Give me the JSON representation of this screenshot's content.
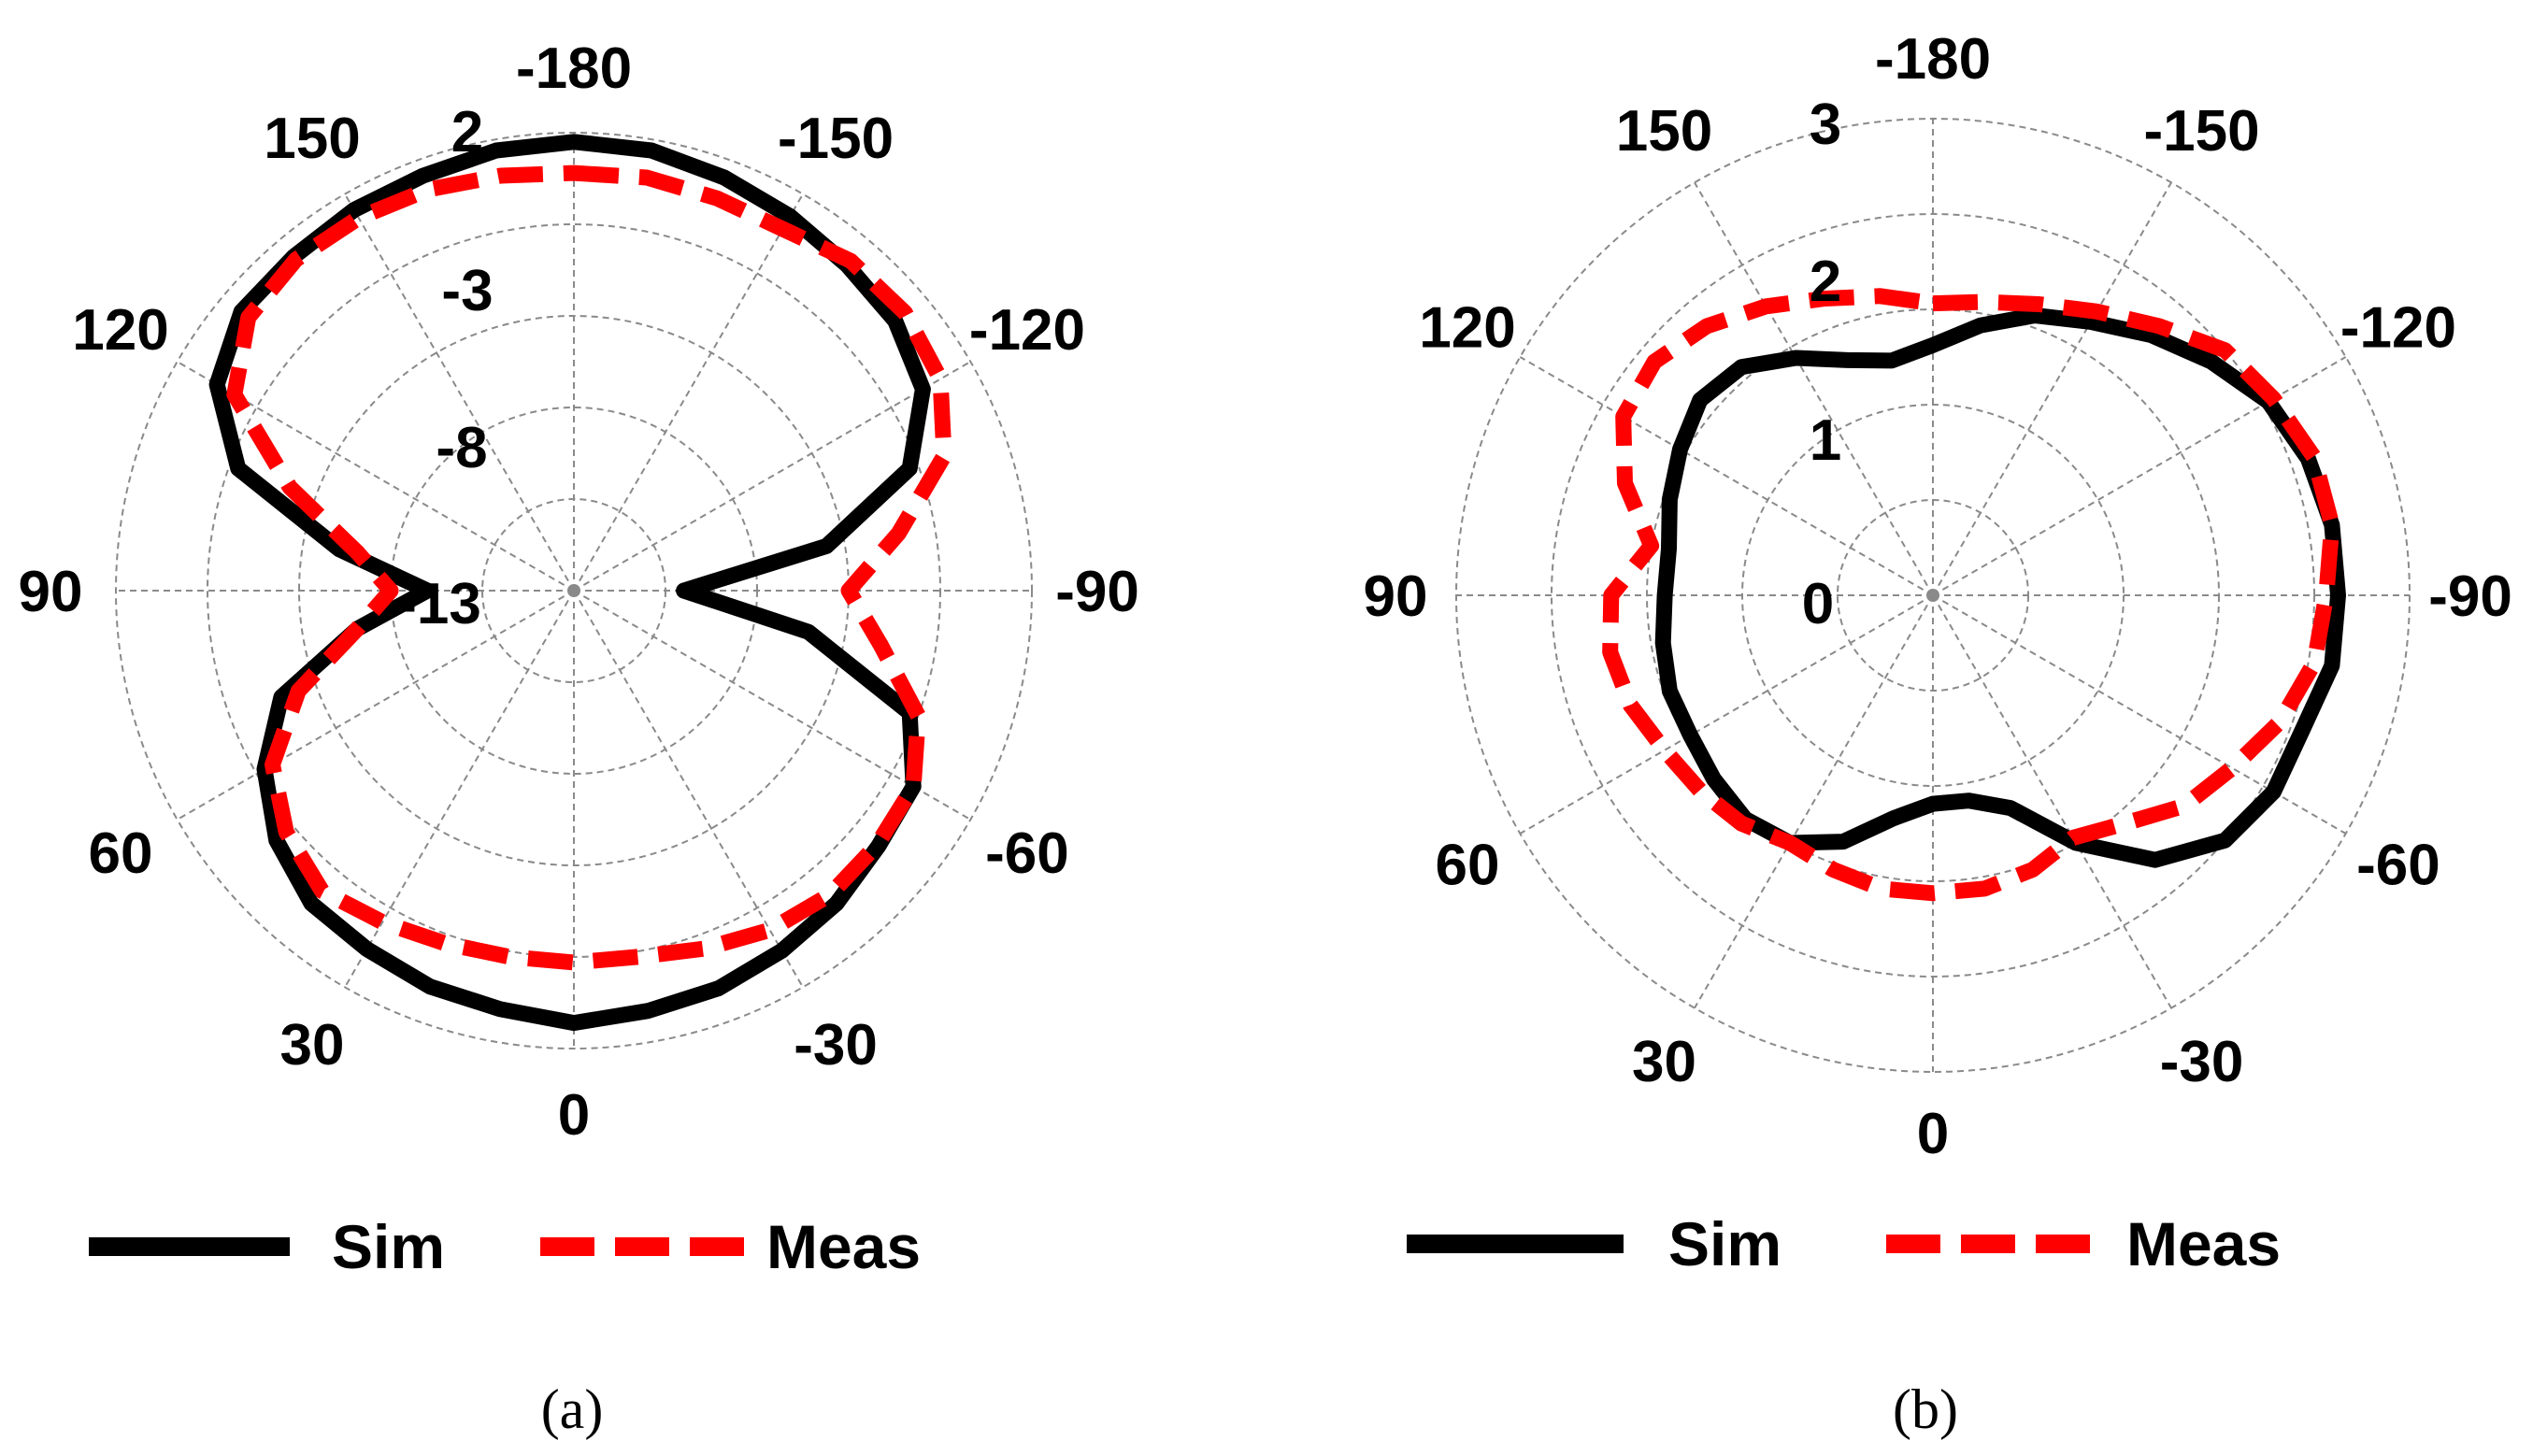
{
  "chart_data": [
    {
      "type": "polar",
      "panel": "(a)",
      "angle_labels": [
        "-180",
        "-150",
        "-120",
        "-90",
        "-60",
        "-30",
        "0",
        "30",
        "60",
        "90",
        "120",
        "150"
      ],
      "radial_labels": [
        "2",
        "-3",
        "-8",
        "-13"
      ],
      "rlim": [
        -23,
        2
      ],
      "legend": [
        "Sim",
        "Meas"
      ],
      "series": [
        {
          "name": "Sim",
          "color": "#000000",
          "dash": "solid",
          "theta": [
            -180,
            -170,
            -160,
            -150,
            -140,
            -130,
            -120,
            -110,
            -100,
            -90,
            -80,
            -70,
            -60,
            -50,
            -40,
            -30,
            -20,
            -10,
            0,
            10,
            20,
            30,
            40,
            50,
            60,
            70,
            80,
            90,
            100,
            110,
            120,
            130,
            140,
            150,
            160,
            170
          ],
          "r": [
            1.5,
            1.4,
            1.0,
            0.6,
            0.2,
            -0.1,
            -1.0,
            -3.5,
            -9,
            -17,
            -10,
            -3.5,
            -1.6,
            -1.3,
            -0.7,
            -0.3,
            0.1,
            0.3,
            0.6,
            0.2,
            0.0,
            -0.4,
            -0.7,
            -1.8,
            -3.5,
            -6,
            -11,
            -15,
            -10,
            -3.5,
            -0.5,
            0.7,
            0.8,
            1.0,
            1.1,
            1.4
          ]
        },
        {
          "name": "Meas",
          "color": "#ff0000",
          "dash": "dashed",
          "theta": [
            -180,
            -170,
            -160,
            -150,
            -140,
            -130,
            -120,
            -110,
            -100,
            -90,
            -80,
            -70,
            -60,
            -50,
            -40,
            -30,
            -20,
            -10,
            0,
            10,
            20,
            30,
            40,
            50,
            60,
            70,
            80,
            90,
            100,
            110,
            120,
            130,
            140,
            150,
            160,
            170
          ],
          "r": [
            -0.2,
            -0.1,
            -0.2,
            -0.2,
            0.5,
            0.6,
            0.1,
            -1.5,
            -5,
            -8,
            -6,
            -3,
            -1.6,
            -1.4,
            -1.3,
            -1.6,
            -2.2,
            -2.7,
            -2.7,
            -2.7,
            -2.5,
            -2.1,
            -1.6,
            -2.5,
            -4,
            -7,
            -11,
            -13,
            -11,
            -6.5,
            -1.6,
            0.2,
            0.6,
            0.5,
            0.3,
            0.0
          ]
        }
      ]
    },
    {
      "type": "polar",
      "panel": "(b)",
      "angle_labels": [
        "-180",
        "-150",
        "-120",
        "-90",
        "-60",
        "-30",
        "0",
        "30",
        "60",
        "90",
        "120",
        "150"
      ],
      "radial_labels": [
        "3",
        "2",
        "1",
        "0"
      ],
      "rlim": [
        -1,
        3
      ],
      "legend": [
        "Sim",
        "Meas"
      ],
      "series": [
        {
          "name": "Sim",
          "color": "#000000",
          "dash": "solid",
          "theta": [
            -180,
            -170,
            -160,
            -150,
            -140,
            -130,
            -120,
            -110,
            -100,
            -90,
            -80,
            -70,
            -60,
            -50,
            -40,
            -30,
            -20,
            -10,
            0,
            10,
            20,
            30,
            40,
            50,
            60,
            70,
            80,
            90,
            100,
            110,
            120,
            130,
            140,
            150,
            160,
            170
          ],
          "r": [
            1.1,
            1.3,
            1.5,
            1.65,
            1.85,
            2.05,
            2.25,
            2.35,
            2.4,
            2.4,
            2.4,
            2.3,
            2.3,
            2.2,
            1.9,
            1.4,
            0.9,
            0.75,
            0.75,
            0.9,
            1.2,
            1.4,
            1.45,
            1.4,
            1.35,
            1.35,
            1.3,
            1.25,
            1.25,
            1.35,
            1.45,
            1.55,
            1.5,
            1.3,
            1.1,
            1.0
          ]
        },
        {
          "name": "Meas",
          "color": "#ff0000",
          "dash": "dashed",
          "theta": [
            -180,
            -170,
            -160,
            -150,
            -140,
            -130,
            -120,
            -110,
            -100,
            -90,
            -80,
            -70,
            -60,
            -50,
            -40,
            -30,
            -20,
            -10,
            0,
            10,
            20,
            30,
            40,
            50,
            60,
            70,
            80,
            90,
            100,
            110,
            120,
            130,
            140,
            150,
            160,
            170
          ],
          "r": [
            1.45,
            1.5,
            1.6,
            1.75,
            1.95,
            2.2,
            2.3,
            2.4,
            2.4,
            2.3,
            2.25,
            2.1,
            1.9,
            1.75,
            1.5,
            1.35,
            1.45,
            1.5,
            1.5,
            1.5,
            1.45,
            1.4,
            1.5,
            1.55,
            1.6,
            1.7,
            1.75,
            1.7,
            1.4,
            1.75,
            2.0,
            2.05,
            1.95,
            1.8,
            1.65,
            1.55
          ]
        }
      ]
    }
  ]
}
